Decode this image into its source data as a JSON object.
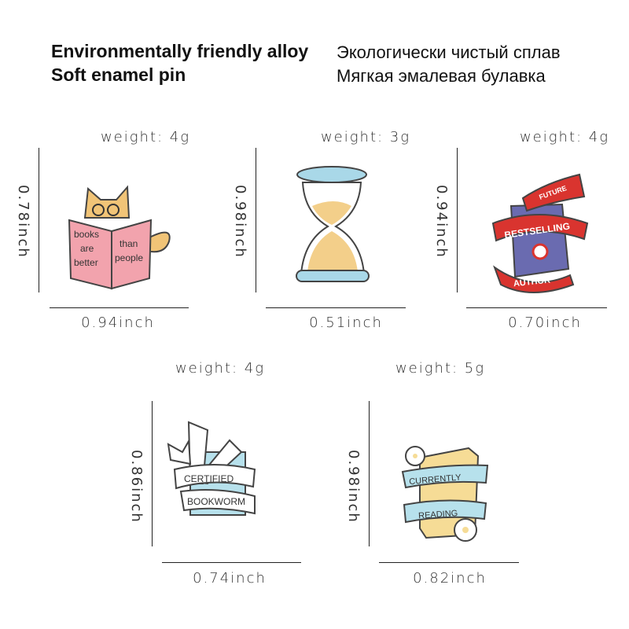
{
  "header": {
    "en_line1": "Environmentally friendly alloy",
    "en_line2": "Soft enamel pin",
    "ru_line1": "Экологически чистый сплав",
    "ru_line2": "Мягкая эмалевая булавка"
  },
  "pins": [
    {
      "weight": "weight:  4g",
      "height": "0.78inch",
      "width": "0.94inch",
      "text_left": [
        "books",
        "are",
        "better"
      ],
      "text_right": [
        "than",
        "people"
      ]
    },
    {
      "weight": "weight:  3g",
      "height": "0.98inch",
      "width": "0.51inch"
    },
    {
      "weight": "weight:  4g",
      "height": "0.94inch",
      "width": "0.70inch",
      "text": [
        "FUTURE",
        "BESTSELLING",
        "AUTHOR"
      ]
    },
    {
      "weight": "weight:  4g",
      "height": "0.86inch",
      "width": "0.74inch",
      "text": [
        "CERTIFIED",
        "BOOKWORM"
      ]
    },
    {
      "weight": "weight:  5g",
      "height": "0.98inch",
      "width": "0.82inch",
      "text": [
        "CURRENTLY",
        "READING"
      ]
    }
  ],
  "colors": {
    "pink": "#f2a3ad",
    "cat": "#f1c477",
    "hourglass_glass": "#a9d8e8",
    "sand": "#f3cf8a",
    "red": "#d9342f",
    "purple": "#6a6bb0",
    "blue": "#b7e1ec",
    "yellow": "#f6dc96"
  }
}
